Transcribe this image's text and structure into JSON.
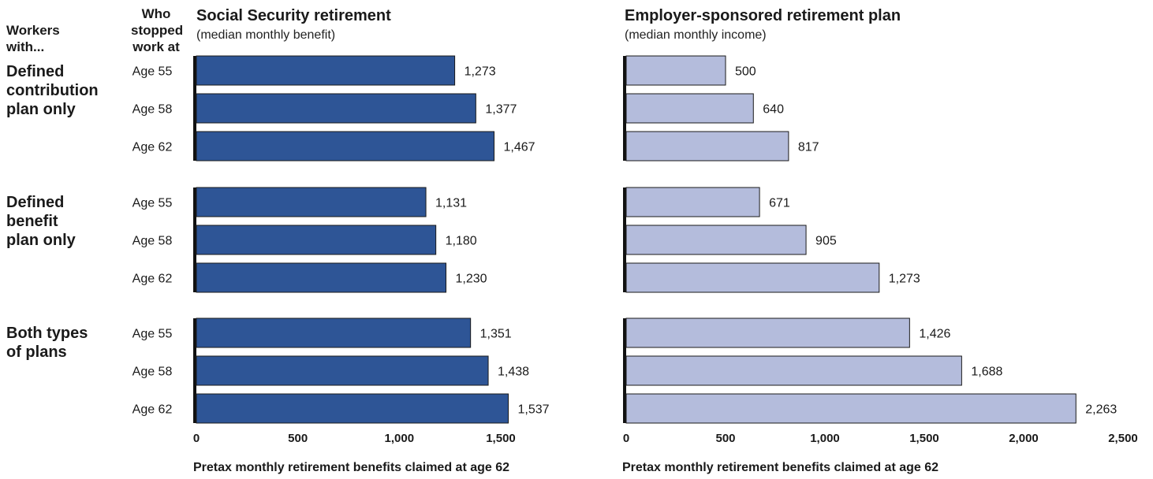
{
  "headers": {
    "workers_with": [
      "Workers",
      "with..."
    ],
    "stopped_at": [
      "Who",
      "stopped",
      "work at"
    ]
  },
  "chart_data": [
    {
      "type": "bar",
      "orientation": "horizontal",
      "title": "Social Security retirement",
      "subtitle": "(median monthly benefit)",
      "xlabel": "Pretax monthly retirement benefits claimed at age 62",
      "xlim": [
        0,
        1500
      ],
      "xticks": [
        "0",
        "500",
        "1,000",
        "1,500"
      ],
      "color": "#2e5596",
      "groups": [
        "Defined contribution plan only",
        "Defined benefit plan only",
        "Both types of plans"
      ],
      "categories": [
        "Age 55",
        "Age 58",
        "Age 62"
      ],
      "series": [
        {
          "group": "Defined contribution plan only",
          "values": [
            1273,
            1377,
            1467
          ],
          "labels": [
            "1,273",
            "1,377",
            "1,467"
          ]
        },
        {
          "group": "Defined benefit plan only",
          "values": [
            1131,
            1180,
            1230
          ],
          "labels": [
            "1,131",
            "1,180",
            "1,230"
          ]
        },
        {
          "group": "Both types of plans",
          "values": [
            1351,
            1438,
            1537
          ],
          "labels": [
            "1,351",
            "1,438",
            "1,537"
          ]
        }
      ]
    },
    {
      "type": "bar",
      "orientation": "horizontal",
      "title": "Employer-sponsored retirement plan",
      "subtitle": "(median monthly income)",
      "xlabel": "Pretax monthly retirement benefits claimed at age 62",
      "xlim": [
        0,
        2500
      ],
      "xticks": [
        "0",
        "500",
        "1,000",
        "1,500",
        "2,000",
        "2,500"
      ],
      "color": "#b4bcdc",
      "groups": [
        "Defined contribution plan only",
        "Defined benefit plan only",
        "Both types of plans"
      ],
      "categories": [
        "Age 55",
        "Age 58",
        "Age 62"
      ],
      "series": [
        {
          "group": "Defined contribution plan only",
          "values": [
            500,
            640,
            817
          ],
          "labels": [
            "500",
            "640",
            "817"
          ]
        },
        {
          "group": "Defined benefit plan only",
          "values": [
            671,
            905,
            1273
          ],
          "labels": [
            "671",
            "905",
            "1,273"
          ]
        },
        {
          "group": "Both types of plans",
          "values": [
            1426,
            1688,
            2263
          ],
          "labels": [
            "1,426",
            "1,688",
            "2,263"
          ]
        }
      ]
    }
  ],
  "group_labels": [
    [
      "Defined",
      "contribution",
      "plan only"
    ],
    [
      "Defined",
      "benefit",
      "plan only"
    ],
    [
      "Both types",
      "of plans"
    ]
  ]
}
